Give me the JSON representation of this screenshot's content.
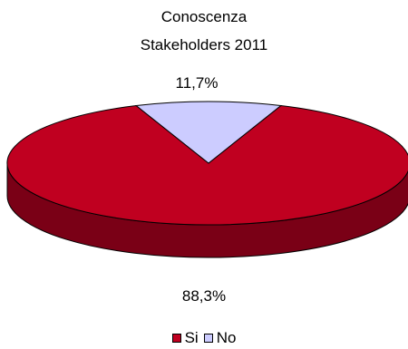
{
  "chart_data": {
    "type": "pie",
    "title_lines": [
      "Conoscenza",
      "Stakeholders 2011"
    ],
    "categories": [
      "Si",
      "No"
    ],
    "values": [
      88.3,
      11.7
    ],
    "labels": [
      "88,3%",
      "11,7%"
    ],
    "colors": [
      "#C00020",
      "#CCCCFF"
    ],
    "side_colors": [
      "#7A0016",
      "#8C8CB0"
    ],
    "legend_position": "bottom",
    "style": "3d"
  }
}
